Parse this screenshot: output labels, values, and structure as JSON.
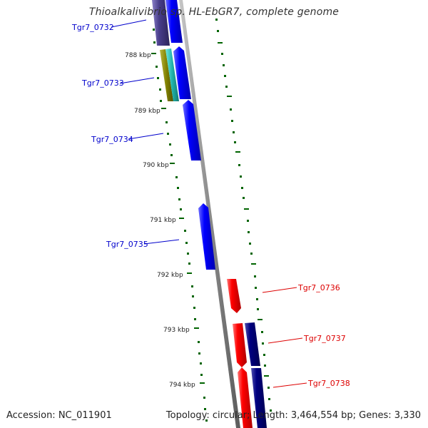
{
  "title": "Thioalkalivibrio sp. HL-EbGR7, complete genome",
  "footer": {
    "accession": "Accession: NC_011901",
    "summary": "Topology: circular; Length: 3,464,554 bp; Genes: 3,330"
  },
  "colors": {
    "background": "#ffffff",
    "backbone": "#888888",
    "forward_gene": "#0000ff",
    "reverse_gene": "#ff0000",
    "dark_forward_gene": "#000080",
    "slate_gene": "#483d8b",
    "olive_gene": "#808000",
    "teal_gene": "#20b2aa",
    "tick_green": "#006400",
    "forward_label": "#0000cc",
    "reverse_label": "#dd0000"
  },
  "kbp_labels": [
    "788 kbp",
    "789 kbp",
    "790 kbp",
    "791 kbp",
    "792 kbp",
    "793 kbp",
    "794 kbp"
  ],
  "gene_labels": [
    {
      "text": "Tgr7_0732",
      "strand": "forward"
    },
    {
      "text": "Tgr7_0733",
      "strand": "forward"
    },
    {
      "text": "Tgr7_0734",
      "strand": "forward"
    },
    {
      "text": "Tgr7_0735",
      "strand": "forward"
    },
    {
      "text": "Tgr7_0736",
      "strand": "reverse"
    },
    {
      "text": "Tgr7_0737",
      "strand": "reverse"
    },
    {
      "text": "Tgr7_0738",
      "strand": "reverse"
    }
  ]
}
